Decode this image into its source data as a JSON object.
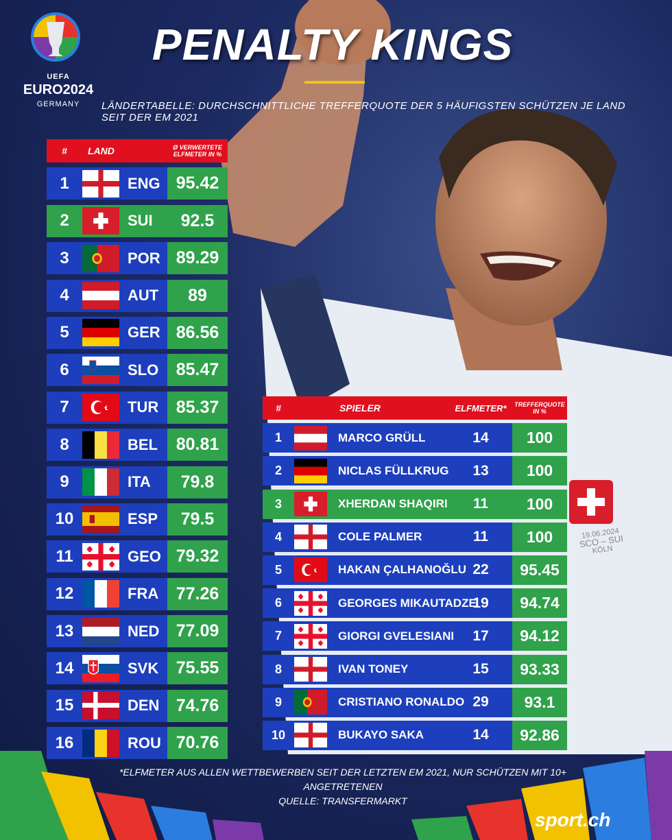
{
  "logo": {
    "uefa": "UEFA",
    "euro": "EURO2024",
    "country": "GERMANY"
  },
  "title": "PENALTY KINGS",
  "subtitle": "Ländertabelle: Durchschnittliche Trefferquote der 5 häufigsten Schützen je Land seit der EM 2021",
  "country_table": {
    "headers": {
      "num": "#",
      "land": "LAND",
      "pct": "Ø VERWERTETE ELFMETER IN %"
    },
    "rows": [
      {
        "rank": "1",
        "code": "ENG",
        "value": "95.42",
        "flag": "england",
        "row_color": "blue"
      },
      {
        "rank": "2",
        "code": "SUI",
        "value": "92.5",
        "flag": "switzerland",
        "row_color": "green"
      },
      {
        "rank": "3",
        "code": "POR",
        "value": "89.29",
        "flag": "portugal",
        "row_color": "blue"
      },
      {
        "rank": "4",
        "code": "AUT",
        "value": "89",
        "flag": "austria",
        "row_color": "blue"
      },
      {
        "rank": "5",
        "code": "GER",
        "value": "86.56",
        "flag": "germany",
        "row_color": "blue"
      },
      {
        "rank": "6",
        "code": "SLO",
        "value": "85.47",
        "flag": "slovenia",
        "row_color": "blue"
      },
      {
        "rank": "7",
        "code": "TUR",
        "value": "85.37",
        "flag": "turkey",
        "row_color": "blue"
      },
      {
        "rank": "8",
        "code": "BEL",
        "value": "80.81",
        "flag": "belgium",
        "row_color": "blue"
      },
      {
        "rank": "9",
        "code": "ITA",
        "value": "79.8",
        "flag": "italy",
        "row_color": "blue"
      },
      {
        "rank": "10",
        "code": "ESP",
        "value": "79.5",
        "flag": "spain",
        "row_color": "blue"
      },
      {
        "rank": "11",
        "code": "GEO",
        "value": "79.32",
        "flag": "georgia",
        "row_color": "blue"
      },
      {
        "rank": "12",
        "code": "FRA",
        "value": "77.26",
        "flag": "france",
        "row_color": "blue"
      },
      {
        "rank": "13",
        "code": "NED",
        "value": "77.09",
        "flag": "netherlands",
        "row_color": "blue"
      },
      {
        "rank": "14",
        "code": "SVK",
        "value": "75.55",
        "flag": "slovakia",
        "row_color": "blue"
      },
      {
        "rank": "15",
        "code": "DEN",
        "value": "74.76",
        "flag": "denmark",
        "row_color": "blue"
      },
      {
        "rank": "16",
        "code": "ROU",
        "value": "70.76",
        "flag": "romania",
        "row_color": "blue"
      }
    ]
  },
  "player_table": {
    "headers": {
      "num": "#",
      "spieler": "SPIELER",
      "elfmeter": "ELFMETER*",
      "quote": "TREFFERQUOTE IN %"
    },
    "rows": [
      {
        "rank": "1",
        "name": "MARCO GRÜLL",
        "penalties": "14",
        "value": "100",
        "flag": "austria",
        "row_color": "blue"
      },
      {
        "rank": "2",
        "name": "NICLAS FÜLLKRUG",
        "penalties": "13",
        "value": "100",
        "flag": "germany",
        "row_color": "blue"
      },
      {
        "rank": "3",
        "name": "XHERDAN SHAQIRI",
        "penalties": "11",
        "value": "100",
        "flag": "switzerland",
        "row_color": "green"
      },
      {
        "rank": "4",
        "name": "COLE PALMER",
        "penalties": "11",
        "value": "100",
        "flag": "england",
        "row_color": "blue"
      },
      {
        "rank": "5",
        "name": "HAKAN ÇALHANOĞLU",
        "penalties": "22",
        "value": "95.45",
        "flag": "turkey",
        "row_color": "blue"
      },
      {
        "rank": "6",
        "name": "GEORGES MIKAUTADZE",
        "penalties": "19",
        "value": "94.74",
        "flag": "georgia",
        "row_color": "blue"
      },
      {
        "rank": "7",
        "name": "GIORGI GVELESIANI",
        "penalties": "17",
        "value": "94.12",
        "flag": "georgia",
        "row_color": "blue"
      },
      {
        "rank": "8",
        "name": "IVAN TONEY",
        "penalties": "15",
        "value": "93.33",
        "flag": "england",
        "row_color": "blue"
      },
      {
        "rank": "9",
        "name": "CRISTIANO RONALDO",
        "penalties": "29",
        "value": "93.1",
        "flag": "portugal",
        "row_color": "blue"
      },
      {
        "rank": "10",
        "name": "BUKAYO SAKA",
        "penalties": "14",
        "value": "92.86",
        "flag": "england",
        "row_color": "blue"
      }
    ]
  },
  "footnote": {
    "line1": "*Elfmeter aus allen Wettbewerben seit der letzten EM 2021, nur Schützen mit 10+ angetretenen",
    "line2": "Quelle: Transfermarkt"
  },
  "jersey": {
    "date": "19.06.2024",
    "match": "SCO – SUI",
    "city": "KÖLN"
  },
  "brand": "sport.ch",
  "colors": {
    "red_header": "#e0101f",
    "row_blue": "#1d3fbd",
    "row_green": "#2fa24b",
    "accent_line": "#f4c20d"
  }
}
